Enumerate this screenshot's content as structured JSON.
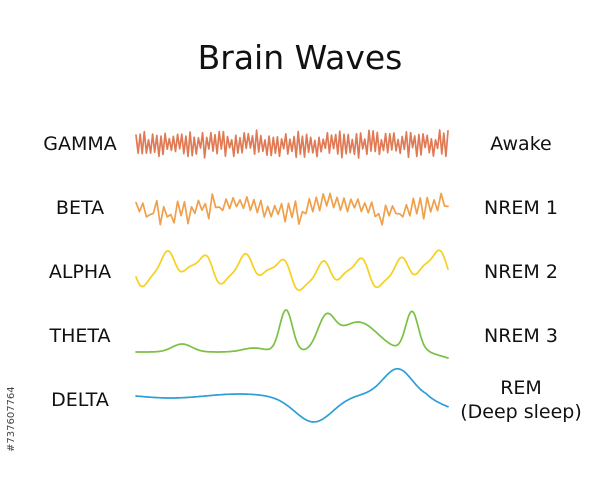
{
  "title": "Brain Waves",
  "waves": [
    {
      "name": "GAMMA",
      "states": [
        "Awake"
      ],
      "color": "#e07a55",
      "pattern": "very high frequency, low amplitude"
    },
    {
      "name": "BETA",
      "states": [
        "NREM 1"
      ],
      "color": "#f0a04b",
      "pattern": "high frequency, low amplitude"
    },
    {
      "name": "ALPHA",
      "states": [
        "NREM 2"
      ],
      "color": "#f5d020",
      "pattern": "medium frequency, medium amplitude"
    },
    {
      "name": "THETA",
      "states": [
        "NREM 3"
      ],
      "color": "#7ac142",
      "pattern": "low frequency"
    },
    {
      "name": "DELTA",
      "states": [
        "REM",
        "(Deep sleep)"
      ],
      "color": "#2e9fd6",
      "pattern": "very low frequency, high amplitude"
    }
  ],
  "credit": "#737607764"
}
